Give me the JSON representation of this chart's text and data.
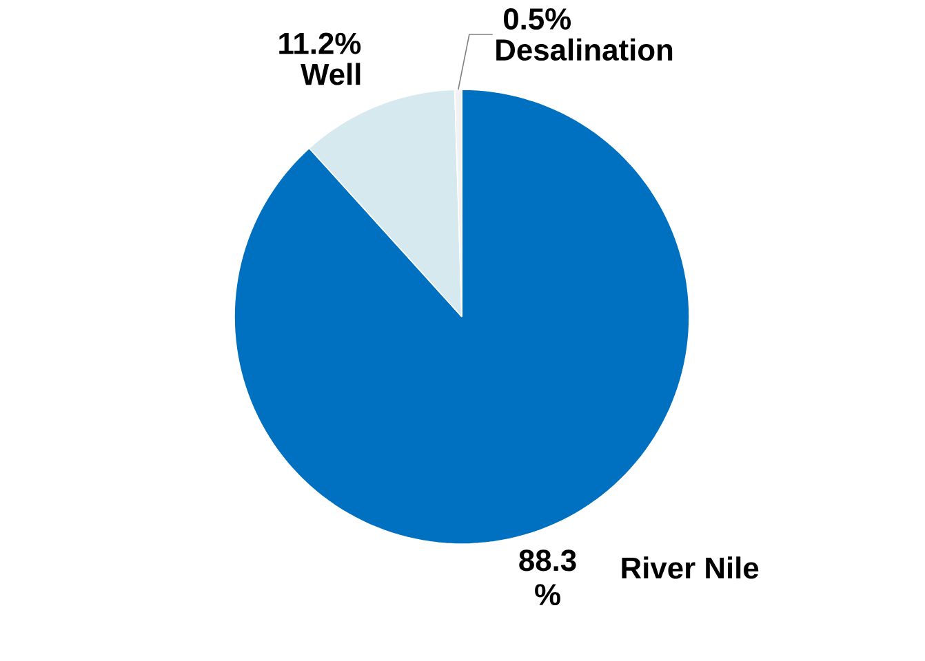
{
  "chart_data": {
    "type": "pie",
    "categories": [
      "River Nile",
      "Well",
      "Desalination"
    ],
    "values": [
      88.3,
      11.2,
      0.5
    ],
    "colors": [
      "#0070c0",
      "#d6e9ef",
      "#f2f2f2"
    ],
    "value_labels": [
      "88.3 %",
      "11.2%",
      "0.5%"
    ]
  }
}
